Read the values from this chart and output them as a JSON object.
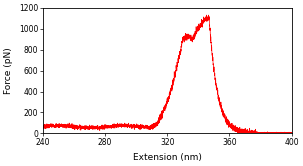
{
  "title": "",
  "xlabel": "Extension (nm)",
  "ylabel": "Force (pN)",
  "xlim": [
    240,
    400
  ],
  "ylim": [
    0,
    1200
  ],
  "yticks": [
    0,
    200,
    400,
    600,
    800,
    1000,
    1200
  ],
  "xticks": [
    240,
    280,
    320,
    360,
    400
  ],
  "line_color": "#ff0000",
  "background_color": "#ffffff",
  "baseline_level": 65,
  "baseline_noise": 12,
  "shoulder_x": 330,
  "shoulder_y": 900,
  "peak_x": 347,
  "peak_y": 1100,
  "drop_end_x": 378,
  "rise_start_x": 310
}
